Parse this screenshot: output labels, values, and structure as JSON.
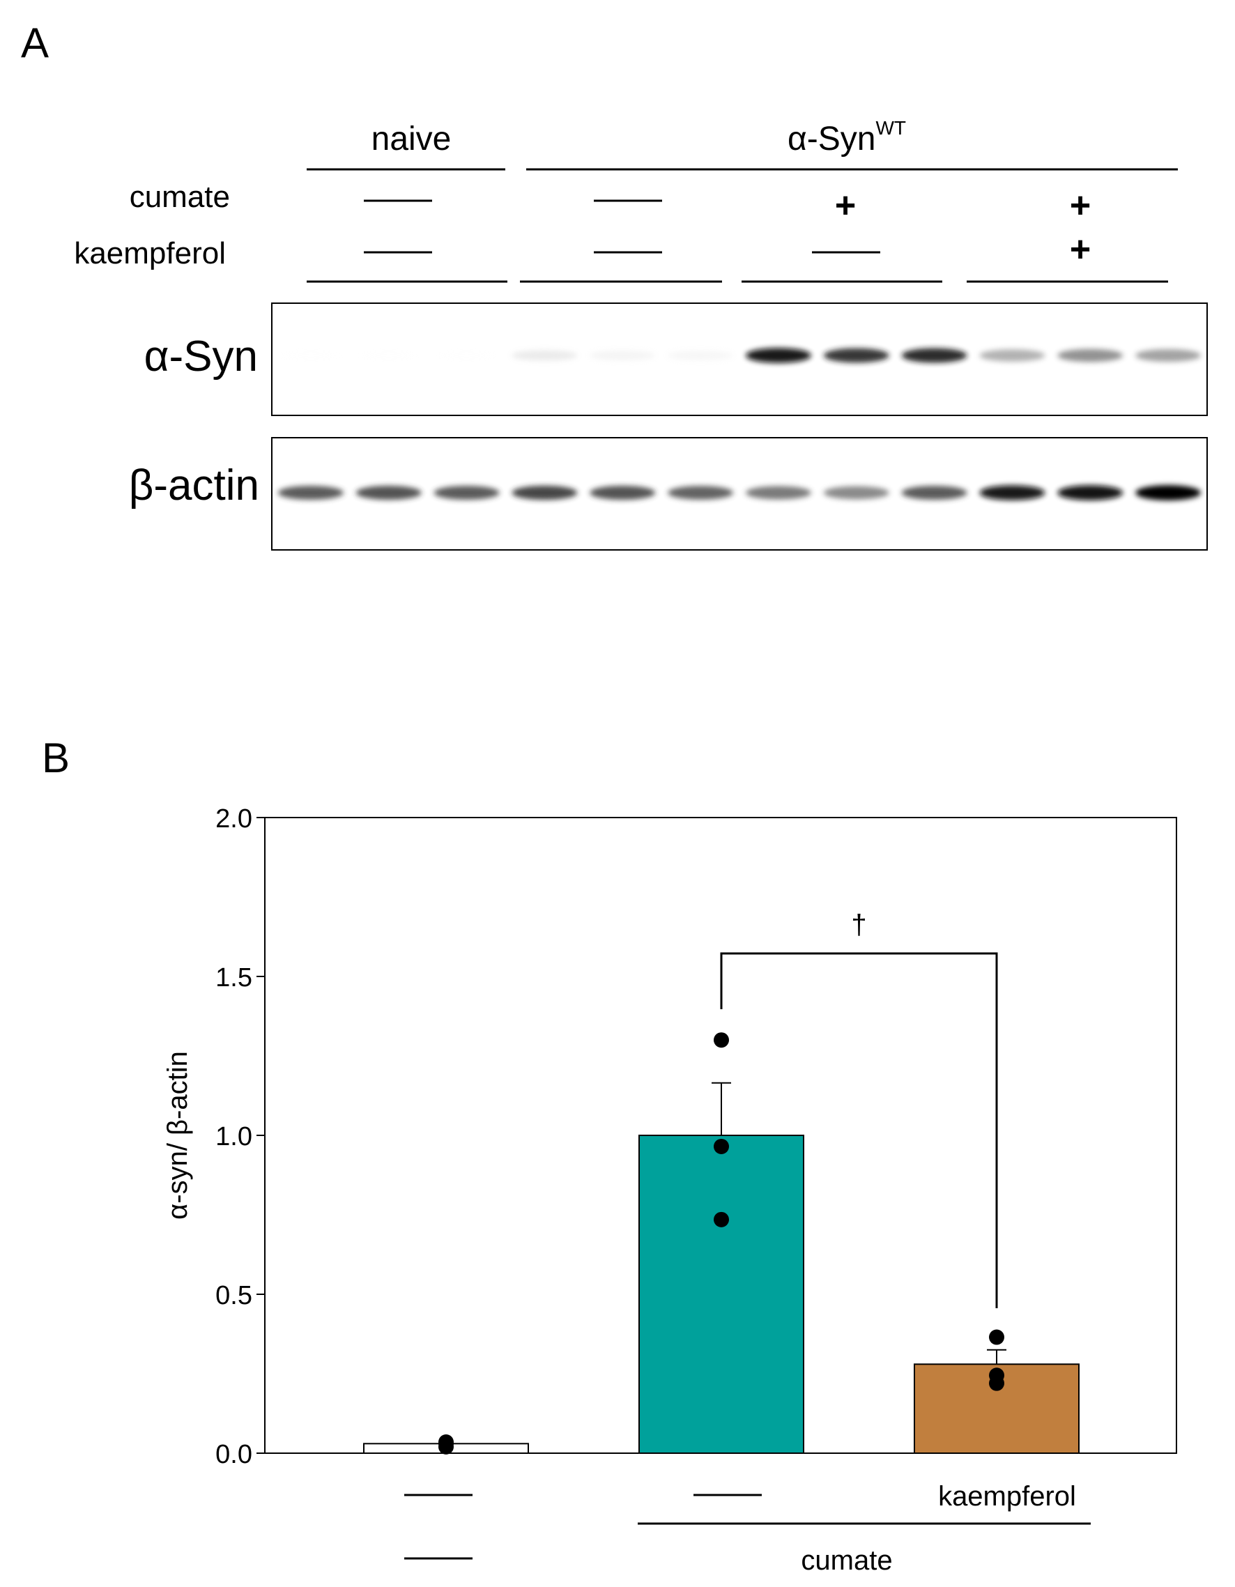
{
  "panels": {
    "a_letter": "A",
    "b_letter": "B"
  },
  "blot": {
    "group_labels": {
      "naive": "naive",
      "syn_main": "α-Syn",
      "syn_sup": "WT"
    },
    "row_labels": {
      "cumate": "cumate",
      "kaempferol": "kaempferol"
    },
    "treatment_marks": {
      "cumate": [
        "—",
        "—",
        "+",
        "+"
      ],
      "kaempferol": [
        "—",
        "—",
        "—",
        "+"
      ]
    },
    "blot_labels": {
      "syn": "α-Syn",
      "actin": "β-actin"
    },
    "lane_count": 12,
    "syn_band_intensity": [
      0.02,
      0.02,
      0.02,
      0.28,
      0.2,
      0.18,
      0.95,
      0.88,
      0.9,
      0.55,
      0.65,
      0.6
    ],
    "actin_band_intensity": [
      0.8,
      0.82,
      0.8,
      0.85,
      0.82,
      0.78,
      0.72,
      0.68,
      0.8,
      0.95,
      0.97,
      1.0
    ]
  },
  "chart_data": {
    "type": "bar",
    "ylabel": "α-syn/ β-actin",
    "ylim": [
      0,
      2
    ],
    "yticks": [
      "0.0",
      "0.5",
      "1.0",
      "1.5",
      "2.0"
    ],
    "bars": [
      {
        "value": 0.03,
        "error": 0.0,
        "color": "#ffffff",
        "points": [
          0.02,
          0.03,
          0.035
        ]
      },
      {
        "value": 1.0,
        "error": 0.165,
        "color": "#00a19b",
        "points": [
          1.3,
          0.965,
          0.735
        ]
      },
      {
        "value": 0.28,
        "error": 0.045,
        "color": "#c17f3e",
        "points": [
          0.365,
          0.245,
          0.22
        ]
      }
    ],
    "significance": {
      "from": 1,
      "to": 2,
      "label": "†"
    },
    "x_annotations": {
      "kaempferol_row": [
        "—",
        "—",
        "kaempferol"
      ],
      "cumate_row": [
        "—",
        "cumate"
      ]
    }
  }
}
